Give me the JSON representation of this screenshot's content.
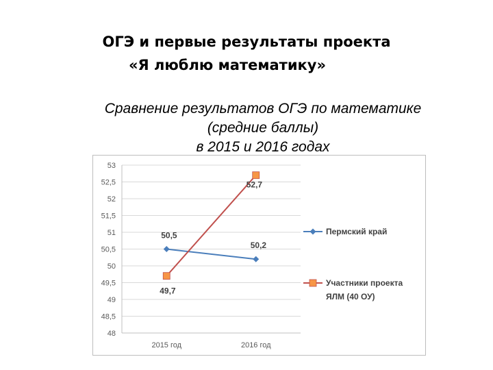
{
  "heading": {
    "line1": "ОГЭ и первые результаты проекта",
    "line2": "«Я люблю математику»"
  },
  "subheading": {
    "line1": "Сравнение результатов ОГЭ по математике",
    "line2": "(средние баллы)",
    "line3": "в 2015 и 2016 годах"
  },
  "chart_data": {
    "type": "line",
    "categories": [
      "2015 год",
      "2016 год"
    ],
    "ylim": [
      48,
      53
    ],
    "yticks": [
      "53",
      "52,5",
      "52",
      "51,5",
      "51",
      "50,5",
      "50",
      "49,5",
      "49",
      "48,5",
      "48"
    ],
    "grid": true,
    "legend_position": "right",
    "series": [
      {
        "name": "Пермский край",
        "values": [
          50.5,
          50.2
        ],
        "labels": [
          "50,5",
          "50,2"
        ],
        "color": "#4a7ebb",
        "marker": "diamond"
      },
      {
        "name": "Участники проекта ЯЛМ (40 ОУ)",
        "values": [
          49.7,
          52.7
        ],
        "labels": [
          "49,7",
          "52,7"
        ],
        "color": "#c0504d",
        "marker_color": "#f79646",
        "marker": "square"
      }
    ]
  }
}
